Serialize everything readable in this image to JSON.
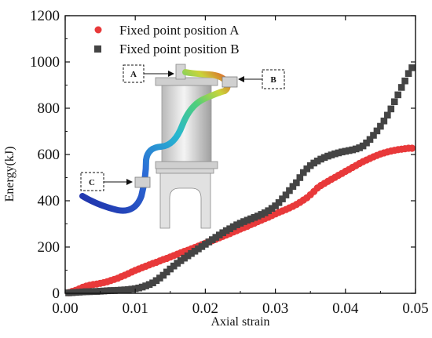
{
  "chart_data": {
    "type": "scatter",
    "title": "",
    "xlabel": "Axial strain",
    "ylabel": "Energy(kJ)",
    "xlim": [
      0.0,
      0.05
    ],
    "ylim": [
      0,
      1200
    ],
    "x_ticks": [
      "0.00",
      "0.01",
      "0.02",
      "0.03",
      "0.04",
      "0.05"
    ],
    "y_ticks": [
      "0",
      "200",
      "400",
      "600",
      "800",
      "1000",
      "1200"
    ],
    "legend_position": "top-left",
    "grid": false,
    "inset_labels": [
      "A",
      "B",
      "C"
    ],
    "series": [
      {
        "name": "Fixed point position A",
        "marker": "circle",
        "color": "#e8393a",
        "points": [
          [
            0.0005,
            3
          ],
          [
            0.001,
            8
          ],
          [
            0.0015,
            13
          ],
          [
            0.002,
            19
          ],
          [
            0.0025,
            26
          ],
          [
            0.003,
            31
          ],
          [
            0.0035,
            35
          ],
          [
            0.004,
            38
          ],
          [
            0.0045,
            40
          ],
          [
            0.005,
            43
          ],
          [
            0.0055,
            46
          ],
          [
            0.006,
            50
          ],
          [
            0.0065,
            55
          ],
          [
            0.007,
            60
          ],
          [
            0.0075,
            65
          ],
          [
            0.008,
            72
          ],
          [
            0.0085,
            78
          ],
          [
            0.009,
            85
          ],
          [
            0.0095,
            92
          ],
          [
            0.01,
            99
          ],
          [
            0.0105,
            105
          ],
          [
            0.011,
            111
          ],
          [
            0.0115,
            117
          ],
          [
            0.012,
            123
          ],
          [
            0.0125,
            129
          ],
          [
            0.013,
            134
          ],
          [
            0.0135,
            140
          ],
          [
            0.014,
            146
          ],
          [
            0.0145,
            151
          ],
          [
            0.015,
            157
          ],
          [
            0.0155,
            163
          ],
          [
            0.016,
            169
          ],
          [
            0.0165,
            175
          ],
          [
            0.017,
            181
          ],
          [
            0.0175,
            186
          ],
          [
            0.018,
            192
          ],
          [
            0.0185,
            198
          ],
          [
            0.019,
            204
          ],
          [
            0.0195,
            210
          ],
          [
            0.02,
            216
          ],
          [
            0.0205,
            222
          ],
          [
            0.021,
            228
          ],
          [
            0.0215,
            234
          ],
          [
            0.022,
            240
          ],
          [
            0.0225,
            246
          ],
          [
            0.023,
            252
          ],
          [
            0.0235,
            258
          ],
          [
            0.024,
            265
          ],
          [
            0.0245,
            271
          ],
          [
            0.025,
            278
          ],
          [
            0.0255,
            284
          ],
          [
            0.026,
            290
          ],
          [
            0.0265,
            297
          ],
          [
            0.027,
            303
          ],
          [
            0.0275,
            310
          ],
          [
            0.028,
            316
          ],
          [
            0.0285,
            323
          ],
          [
            0.029,
            329
          ],
          [
            0.0295,
            336
          ],
          [
            0.03,
            343
          ],
          [
            0.0305,
            350
          ],
          [
            0.031,
            356
          ],
          [
            0.0315,
            362
          ],
          [
            0.032,
            369
          ],
          [
            0.0325,
            376
          ],
          [
            0.033,
            384
          ],
          [
            0.0335,
            393
          ],
          [
            0.034,
            403
          ],
          [
            0.0345,
            413
          ],
          [
            0.035,
            426
          ],
          [
            0.0355,
            440
          ],
          [
            0.036,
            455
          ],
          [
            0.0365,
            466
          ],
          [
            0.037,
            475
          ],
          [
            0.0375,
            484
          ],
          [
            0.038,
            493
          ],
          [
            0.0385,
            501
          ],
          [
            0.039,
            510
          ],
          [
            0.0395,
            518
          ],
          [
            0.04,
            527
          ],
          [
            0.0405,
            535
          ],
          [
            0.041,
            544
          ],
          [
            0.0415,
            552
          ],
          [
            0.042,
            561
          ],
          [
            0.0425,
            569
          ],
          [
            0.043,
            576
          ],
          [
            0.0435,
            583
          ],
          [
            0.044,
            590
          ],
          [
            0.0445,
            596
          ],
          [
            0.045,
            602
          ],
          [
            0.0455,
            607
          ],
          [
            0.046,
            611
          ],
          [
            0.0465,
            615
          ],
          [
            0.047,
            618
          ],
          [
            0.0475,
            621
          ],
          [
            0.048,
            623
          ],
          [
            0.0485,
            625
          ],
          [
            0.049,
            627
          ],
          [
            0.0495,
            627
          ]
        ]
      },
      {
        "name": "Fixed point position B",
        "marker": "square",
        "color": "#444444",
        "points": [
          [
            0.0005,
            2
          ],
          [
            0.001,
            3
          ],
          [
            0.0015,
            4
          ],
          [
            0.002,
            5
          ],
          [
            0.0025,
            6
          ],
          [
            0.003,
            7
          ],
          [
            0.0035,
            7
          ],
          [
            0.004,
            8
          ],
          [
            0.0045,
            8
          ],
          [
            0.005,
            9
          ],
          [
            0.0055,
            10
          ],
          [
            0.006,
            11
          ],
          [
            0.0065,
            12
          ],
          [
            0.007,
            12
          ],
          [
            0.0075,
            13
          ],
          [
            0.008,
            14
          ],
          [
            0.0085,
            15
          ],
          [
            0.009,
            16
          ],
          [
            0.0095,
            18
          ],
          [
            0.01,
            20
          ],
          [
            0.0105,
            23
          ],
          [
            0.011,
            27
          ],
          [
            0.0115,
            32
          ],
          [
            0.012,
            38
          ],
          [
            0.0125,
            45
          ],
          [
            0.013,
            55
          ],
          [
            0.0135,
            66
          ],
          [
            0.014,
            78
          ],
          [
            0.0145,
            92
          ],
          [
            0.015,
            105
          ],
          [
            0.0155,
            118
          ],
          [
            0.016,
            130
          ],
          [
            0.0165,
            141
          ],
          [
            0.017,
            152
          ],
          [
            0.0175,
            162
          ],
          [
            0.018,
            172
          ],
          [
            0.0185,
            182
          ],
          [
            0.019,
            192
          ],
          [
            0.0195,
            202
          ],
          [
            0.02,
            212
          ],
          [
            0.0205,
            222
          ],
          [
            0.021,
            232
          ],
          [
            0.0215,
            242
          ],
          [
            0.022,
            252
          ],
          [
            0.0225,
            262
          ],
          [
            0.023,
            271
          ],
          [
            0.0235,
            279
          ],
          [
            0.024,
            288
          ],
          [
            0.0245,
            296
          ],
          [
            0.025,
            303
          ],
          [
            0.0255,
            310
          ],
          [
            0.026,
            316
          ],
          [
            0.0265,
            322
          ],
          [
            0.027,
            328
          ],
          [
            0.0275,
            334
          ],
          [
            0.028,
            341
          ],
          [
            0.0285,
            348
          ],
          [
            0.029,
            357
          ],
          [
            0.0295,
            367
          ],
          [
            0.03,
            378
          ],
          [
            0.0305,
            392
          ],
          [
            0.031,
            408
          ],
          [
            0.0315,
            425
          ],
          [
            0.032,
            444
          ],
          [
            0.0325,
            462
          ],
          [
            0.033,
            478
          ],
          [
            0.0335,
            500
          ],
          [
            0.034,
            522
          ],
          [
            0.0345,
            538
          ],
          [
            0.035,
            552
          ],
          [
            0.0355,
            563
          ],
          [
            0.036,
            572
          ],
          [
            0.0365,
            580
          ],
          [
            0.037,
            587
          ],
          [
            0.0375,
            593
          ],
          [
            0.038,
            598
          ],
          [
            0.0385,
            603
          ],
          [
            0.039,
            607
          ],
          [
            0.0395,
            611
          ],
          [
            0.04,
            614
          ],
          [
            0.0405,
            617
          ],
          [
            0.041,
            620
          ],
          [
            0.0415,
            624
          ],
          [
            0.042,
            629
          ],
          [
            0.0425,
            637
          ],
          [
            0.043,
            650
          ],
          [
            0.0435,
            665
          ],
          [
            0.044,
            683
          ],
          [
            0.0445,
            702
          ],
          [
            0.045,
            722
          ],
          [
            0.0455,
            745
          ],
          [
            0.046,
            770
          ],
          [
            0.0465,
            797
          ],
          [
            0.047,
            828
          ],
          [
            0.0475,
            858
          ],
          [
            0.048,
            890
          ],
          [
            0.0485,
            918
          ],
          [
            0.049,
            950
          ],
          [
            0.0495,
            975
          ]
        ]
      }
    ]
  }
}
